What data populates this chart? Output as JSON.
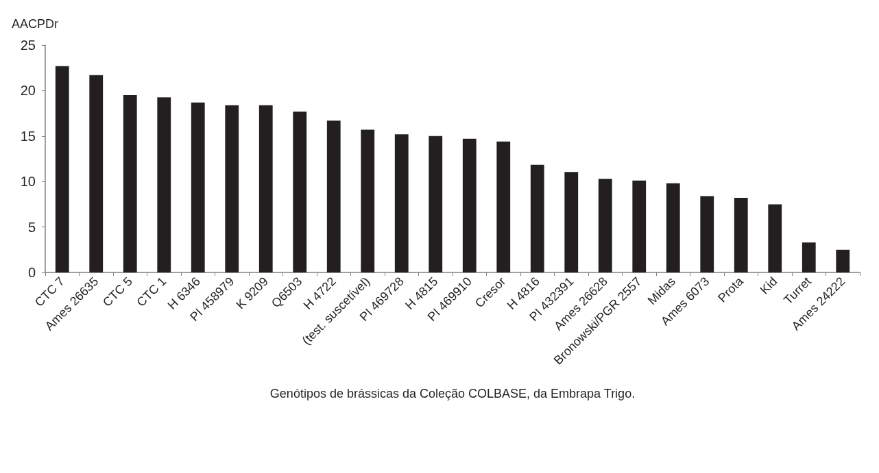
{
  "chart_data": {
    "type": "bar",
    "ylabel": "AACPDr",
    "xlabel": "Genótipos de brássicas da Coleção COLBASE, da Embrapa Trigo.",
    "categories": [
      "CTC 7",
      "Ames 26635",
      "CTC 5",
      "CTC 1",
      "H 6346",
      "PI 458979",
      "K 9209",
      "Q6503",
      "H 4722",
      "(test. suscetível)",
      "PI 469728",
      "H 4815",
      "PI 469910",
      "Cresor",
      "H 4816",
      "PI 432391",
      "Ames 26628",
      "Bronowski/PGR 2557",
      "Midas",
      "Ames 6073",
      "Prota",
      "Kid",
      "Turret",
      "Ames 24222"
    ],
    "values": [
      22.7,
      21.7,
      19.5,
      19.25,
      18.7,
      18.4,
      18.4,
      17.7,
      16.7,
      15.7,
      15.2,
      15.0,
      14.7,
      14.4,
      11.85,
      11.05,
      10.3,
      10.1,
      9.8,
      8.4,
      8.2,
      7.5,
      3.3,
      2.5
    ],
    "color": "#231f20",
    "ylim": [
      0,
      25
    ],
    "yticks": [
      0,
      5,
      10,
      15,
      20,
      25
    ],
    "grid": false
  }
}
